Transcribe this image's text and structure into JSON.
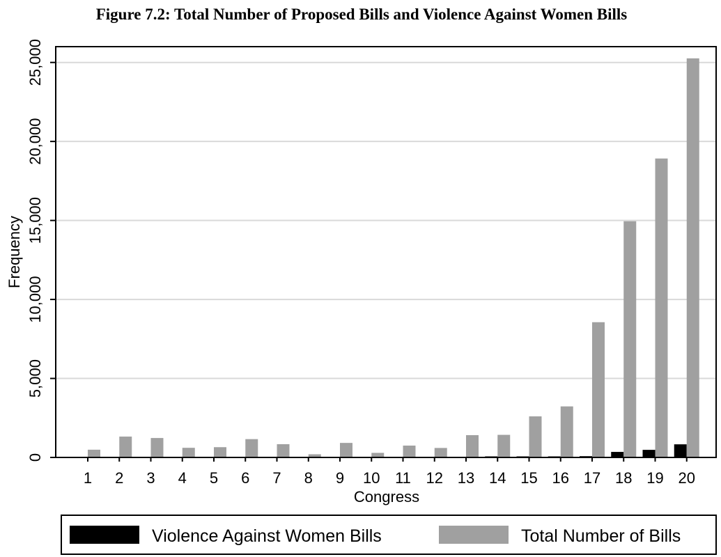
{
  "chart_data": {
    "type": "bar",
    "title": "Figure 7.2: Total Number of Proposed Bills and Violence Against Women Bills",
    "xlabel": "Congress",
    "ylabel": "Frequency",
    "categories": [
      "1",
      "2",
      "3",
      "4",
      "5",
      "6",
      "7",
      "8",
      "9",
      "10",
      "11",
      "12",
      "13",
      "14",
      "15",
      "16",
      "17",
      "18",
      "19",
      "20"
    ],
    "series": [
      {
        "name": "Violence Against Women Bills",
        "color": "#000000",
        "values": [
          0,
          0,
          0,
          0,
          0,
          0,
          0,
          0,
          0,
          0,
          0,
          0,
          0,
          30,
          40,
          50,
          80,
          350,
          480,
          830
        ]
      },
      {
        "name": "Total Number of Bills",
        "color": "#a0a0a0",
        "values": [
          490,
          1320,
          1230,
          610,
          650,
          1160,
          840,
          200,
          920,
          290,
          750,
          600,
          1410,
          1430,
          2600,
          3230,
          8560,
          14950,
          18920,
          25260
        ]
      }
    ],
    "ylim": [
      0,
      26000
    ],
    "yticks": [
      0,
      5000,
      10000,
      15000,
      20000,
      25000
    ],
    "ytick_labels": [
      "0",
      "5,000",
      "10,000",
      "15,000",
      "20,000",
      "25,000"
    ],
    "grid": true,
    "legend_position": "bottom"
  }
}
